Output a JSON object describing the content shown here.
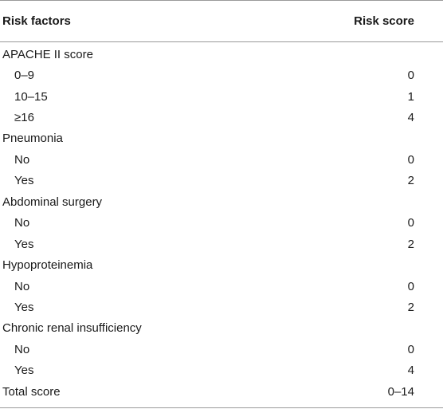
{
  "table": {
    "headers": {
      "factor": "Risk factors",
      "score": "Risk score"
    },
    "rows": [
      {
        "factor": "APACHE II score",
        "score": "",
        "level": 0
      },
      {
        "factor": "0–9",
        "score": "0",
        "level": 1
      },
      {
        "factor": "10–15",
        "score": "1",
        "level": 1
      },
      {
        "factor": "≥16",
        "score": "4",
        "level": 1
      },
      {
        "factor": "Pneumonia",
        "score": "",
        "level": 0
      },
      {
        "factor": "No",
        "score": "0",
        "level": 1
      },
      {
        "factor": "Yes",
        "score": "2",
        "level": 1
      },
      {
        "factor": "Abdominal surgery",
        "score": "",
        "level": 0
      },
      {
        "factor": "No",
        "score": "0",
        "level": 1
      },
      {
        "factor": "Yes",
        "score": "2",
        "level": 1
      },
      {
        "factor": "Hypoproteinemia",
        "score": "",
        "level": 0
      },
      {
        "factor": "No",
        "score": "0",
        "level": 1
      },
      {
        "factor": "Yes",
        "score": "2",
        "level": 1
      },
      {
        "factor": "Chronic renal insufficiency",
        "score": "",
        "level": 0
      },
      {
        "factor": "No",
        "score": "0",
        "level": 1
      },
      {
        "factor": "Yes",
        "score": "4",
        "level": 1
      },
      {
        "factor": "Total score",
        "score": "0–14",
        "level": 0
      }
    ]
  }
}
